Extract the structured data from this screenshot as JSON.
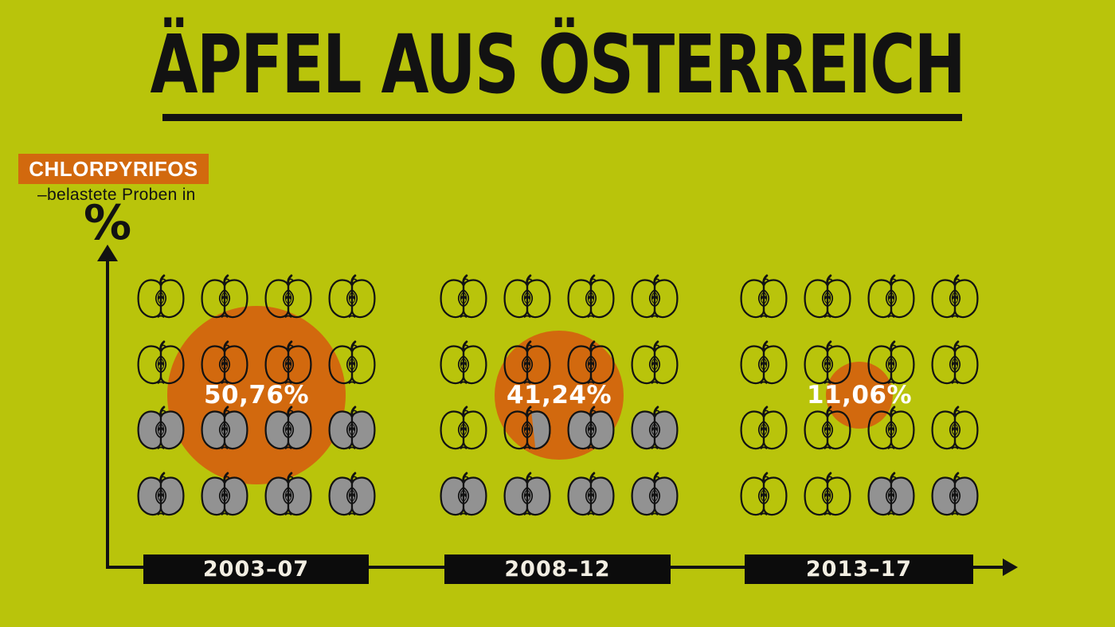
{
  "header": {
    "title": "ÄPFEL AUS ÖSTERREICH",
    "substance": "CHLORPYRIFOS",
    "subtitle": "–belastete Proben in",
    "unit": "%"
  },
  "colors": {
    "background": "#b9c40b",
    "orange": "#d2690e",
    "apple_gray": "#929292",
    "ink": "#121212",
    "bar_black": "#0c0c0c",
    "bar_text": "#f2eee2",
    "value_text": "#ffffff"
  },
  "chart_data": {
    "type": "pictograph",
    "title": "ÄPFEL AUS ÖSTERREICH",
    "unit_label": "CHLORPYRIFOS –belastete Proben in %",
    "icon": "apple-half-cross-section",
    "icons_per_group": 16,
    "grid": "4x4",
    "categories": [
      "2003–07",
      "2008–12",
      "2013–17"
    ],
    "values": [
      50.76,
      41.24,
      11.06
    ],
    "value_labels": [
      "50,76%",
      "41,24%",
      "11,06%"
    ],
    "pattern_key": {
      "o": "outline-apple",
      "g": "gray-filled-apple",
      "p": "partially-gray-apple"
    },
    "groups": [
      {
        "label": "2003–07",
        "value": 50.76,
        "value_label": "50,76%",
        "circle_radius": 112,
        "gray_apple_count": 8,
        "pattern": [
          "oooo",
          "oooo",
          "gggg",
          "gggg"
        ]
      },
      {
        "label": "2008–12",
        "value": 41.24,
        "value_label": "41,24%",
        "circle_radius": 81,
        "gray_apple_count": 6.5,
        "pattern": [
          "oooo",
          "oooo",
          "opgg",
          "gggg"
        ]
      },
      {
        "label": "2013–17",
        "value": 11.06,
        "value_label": "11,06%",
        "circle_radius": 42,
        "gray_apple_count": 2,
        "pattern": [
          "oooo",
          "oooo",
          "oooo",
          "oogg"
        ]
      }
    ]
  }
}
